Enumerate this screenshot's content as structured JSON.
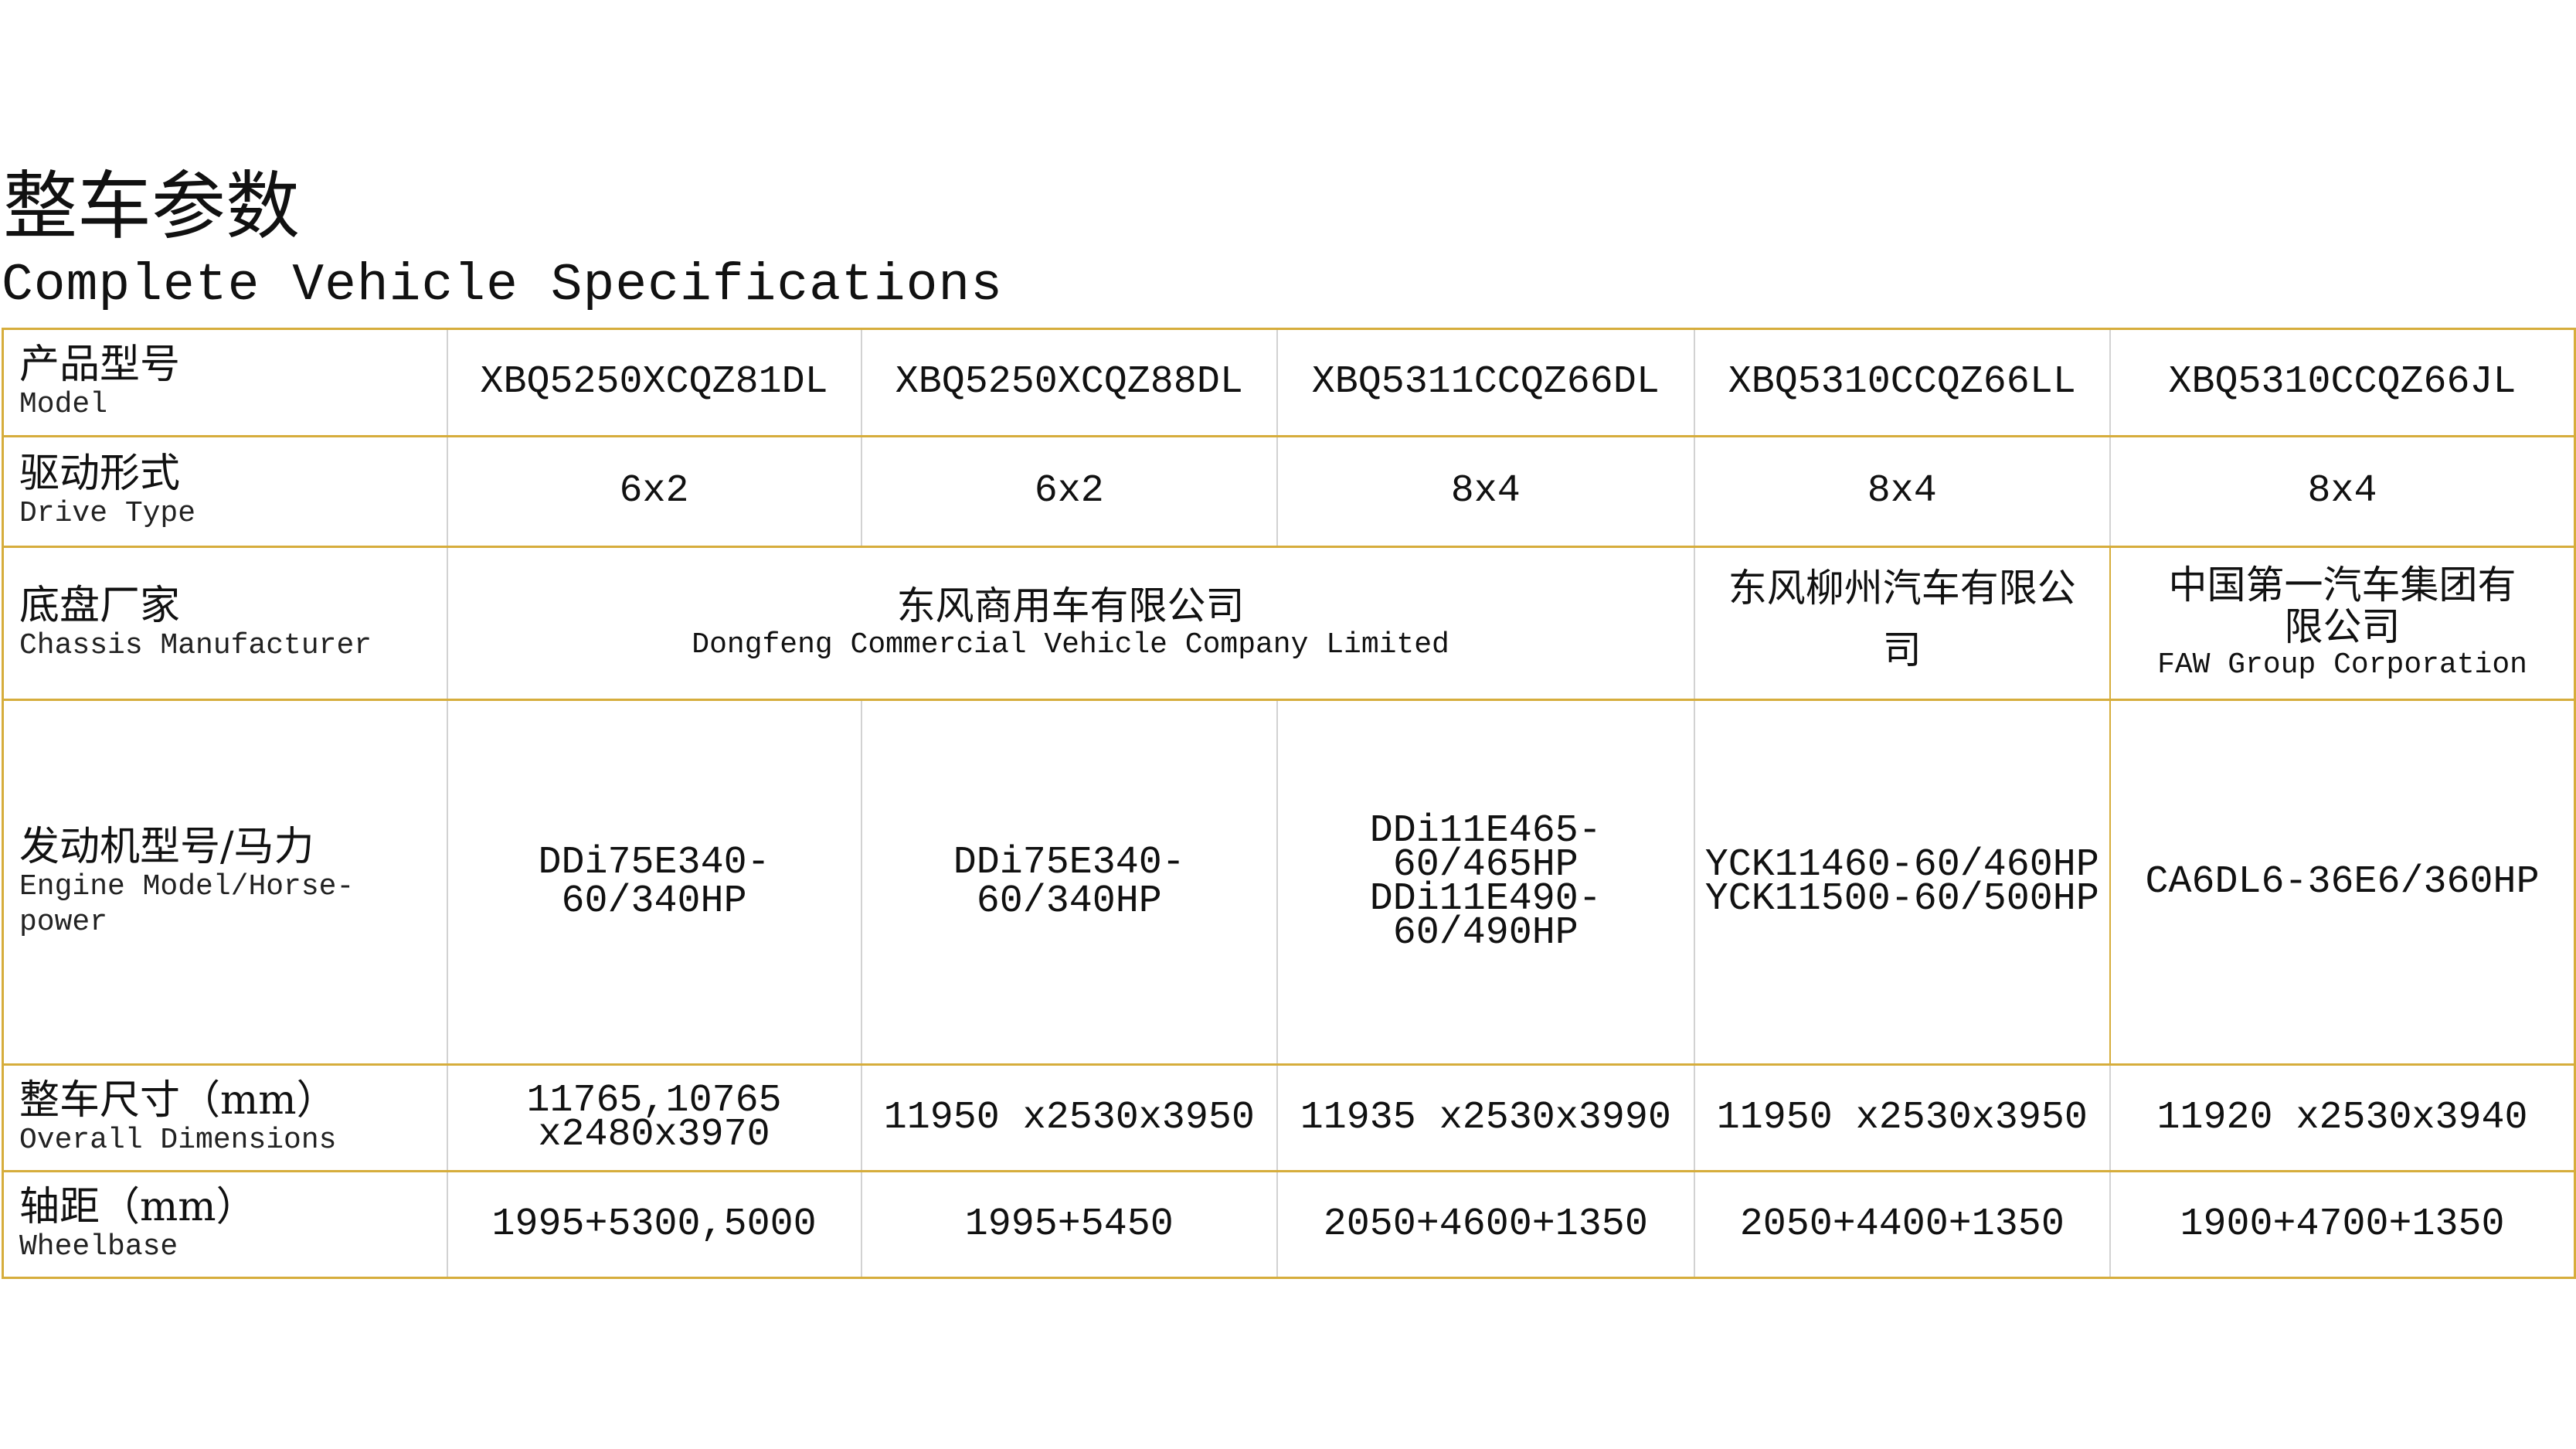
{
  "title": {
    "cn": "整车参数",
    "en": "Complete Vehicle Specifications"
  },
  "colors": {
    "border_gold": "#d6ad3c",
    "border_gray": "#d2d2d2"
  },
  "rows": {
    "model": {
      "label_cn": "产品型号",
      "label_en": "Model",
      "values": [
        "XBQ5250XCQZ81DL",
        "XBQ5250XCQZ88DL",
        "XBQ5311CCQZ66DL",
        "XBQ5310CCQZ66LL",
        "XBQ5310CCQZ66JL"
      ]
    },
    "drive": {
      "label_cn": "驱动形式",
      "label_en": "Drive Type",
      "values": [
        "6x2",
        "6x2",
        "8x4",
        "8x4",
        "8x4"
      ]
    },
    "chassis": {
      "label_cn": "底盘厂家",
      "label_en": "Chassis Manufacturer",
      "dongfeng_cn": "东风商用车有限公司",
      "dongfeng_en": "Dongfeng Commercial Vehicle Company Limited",
      "liuzhou_cn": "东风柳州汽车有限公司",
      "faw_cn": "中国第一汽车集团有限公司",
      "faw_en": "FAW Group Corporation"
    },
    "engine": {
      "label_cn": "发动机型号/马力",
      "label_en": "Engine Model/Horse-power",
      "values": [
        [
          "DDi75E340-60/340HP"
        ],
        [
          "DDi75E340-60/340HP"
        ],
        [
          "DDi11E465-60/465HP",
          "DDi11E490-60/490HP"
        ],
        [
          "YCK11460-60/460HP",
          "YCK11500-60/500HP"
        ],
        [
          "CA6DL6-36E6/360HP"
        ]
      ]
    },
    "dimensions": {
      "label_cn": "整车尺寸（mm）",
      "label_en": "Overall Dimensions",
      "values": [
        [
          "11765,10765",
          "x2480x3970"
        ],
        [
          "11950 x2530x3950"
        ],
        [
          "11935 x2530x3990"
        ],
        [
          "11950 x2530x3950"
        ],
        [
          "11920 x2530x3940"
        ]
      ]
    },
    "wheelbase": {
      "label_cn": "轴距（mm）",
      "label_en": "Wheelbase",
      "values": [
        "1995+5300,5000",
        "1995+5450",
        "2050+4600+1350",
        "2050+4400+1350",
        "1900+4700+1350"
      ]
    }
  }
}
